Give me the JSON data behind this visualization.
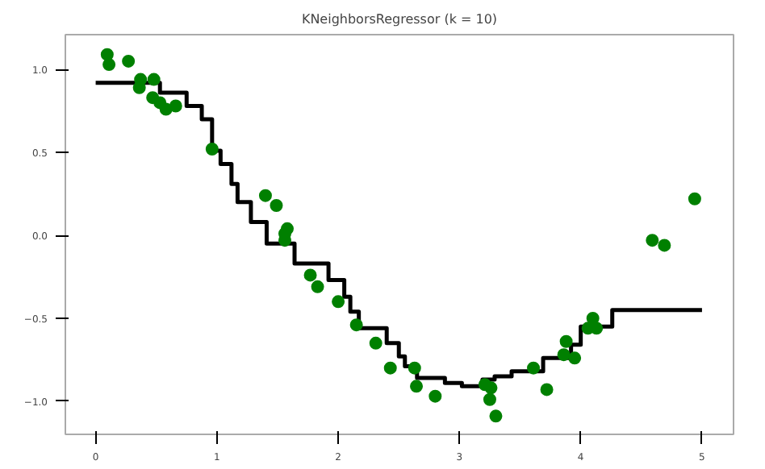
{
  "chart_data": {
    "type": "scatter",
    "title": "KNeighborsRegressor (k = 10)",
    "xlim": [
      -0.25,
      5.26
    ],
    "ylim": [
      -1.2,
      1.21
    ],
    "xticks": [
      0,
      1,
      2,
      3,
      4,
      5
    ],
    "yticks": [
      {
        "value": -1,
        "label": "−1.0"
      },
      {
        "value": -0.5,
        "label": "−0.5"
      },
      {
        "value": 0,
        "label": "0.0"
      },
      {
        "value": 0.5,
        "label": "0.5"
      },
      {
        "value": 1,
        "label": "1.0"
      }
    ],
    "series": [
      {
        "color": "#008000",
        "marker": "circle",
        "x": [
          0.095,
          0.11,
          0.27,
          0.37,
          0.36,
          0.48,
          0.47,
          0.53,
          0.58,
          0.66,
          0.96,
          1.4,
          1.49,
          1.58,
          1.56,
          1.56,
          1.77,
          1.83,
          2.0,
          2.15,
          2.31,
          2.43,
          2.63,
          2.645,
          2.8,
          3.21,
          3.26,
          3.25,
          3.3,
          3.61,
          3.72,
          3.86,
          3.88,
          3.95,
          4.06,
          4.1,
          4.13,
          4.59,
          4.69,
          4.94
        ],
        "values": [
          1.09,
          1.03,
          1.05,
          0.94,
          0.89,
          0.94,
          0.83,
          0.8,
          0.76,
          0.78,
          0.52,
          0.24,
          0.18,
          0.04,
          0.01,
          -0.03,
          -0.24,
          -0.31,
          -0.4,
          -0.54,
          -0.65,
          -0.8,
          -0.8,
          -0.91,
          -0.97,
          -0.9,
          -0.92,
          -0.99,
          -1.09,
          -0.8,
          -0.93,
          -0.72,
          -0.64,
          -0.74,
          -0.56,
          -0.5,
          -0.56,
          -0.03,
          -0.06,
          0.22
        ]
      },
      {
        "type": "step",
        "color": "#000000",
        "marker": "none",
        "line_style": "solid",
        "x": [
          0,
          0.53,
          0.75,
          0.875,
          0.96,
          1.03,
          1.12,
          1.17,
          1.28,
          1.41,
          1.64,
          1.92,
          2.05,
          2.1,
          2.17,
          2.4,
          2.5,
          2.55,
          2.65,
          2.88,
          3.02,
          3.19,
          3.29,
          3.43,
          3.69,
          3.92,
          4.0,
          4.26,
          5.0
        ],
        "values": [
          0.92,
          0.86,
          0.78,
          0.7,
          0.51,
          0.43,
          0.31,
          0.2,
          0.08,
          -0.05,
          -0.17,
          -0.27,
          -0.37,
          -0.46,
          -0.56,
          -0.65,
          -0.73,
          -0.79,
          -0.86,
          -0.89,
          -0.91,
          -0.87,
          -0.85,
          -0.82,
          -0.74,
          -0.66,
          -0.55,
          -0.45,
          -0.45
        ]
      }
    ]
  }
}
